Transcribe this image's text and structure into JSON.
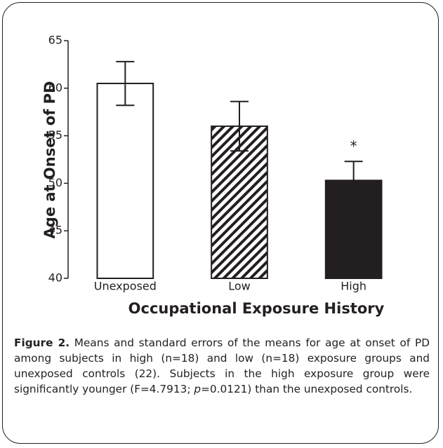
{
  "chart_data": {
    "type": "bar",
    "categories": [
      "Unexposed",
      "Low",
      "High"
    ],
    "values": [
      60.5,
      56.0,
      50.3
    ],
    "errors": [
      2.3,
      2.6,
      2.0
    ],
    "fills": [
      "#ffffff",
      "hatched",
      "#231f20"
    ],
    "ylim": [
      40,
      65
    ],
    "yticks": [
      40,
      45,
      50,
      55,
      60,
      65
    ],
    "ylabel": "Age at Onset of PD",
    "xlabel": "Occupational Exposure History",
    "annotations": [
      {
        "category": 2,
        "text": "*"
      }
    ]
  },
  "caption": {
    "label": "Figure 2.",
    "text1": " Means and standard errors of the means for age at onset of PD among subjects in high (n=18) and low (n=18) exposure groups and unexposed controls (22). Subjects in the high exposure group were significantly younger (F=4.7913; ",
    "italic": "p",
    "text2": "=0.0121) than the unexposed controls."
  }
}
